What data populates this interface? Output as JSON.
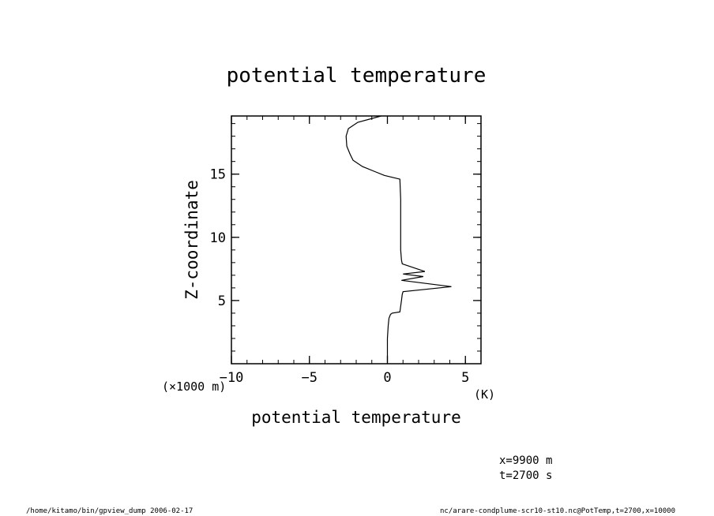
{
  "chart_data": {
    "type": "line",
    "title": "potential temperature",
    "xlabel": "potential temperature",
    "xunit": "(K)",
    "ylabel": "Z-coordinate",
    "yunit": "(×1000 m)",
    "xlim": [
      -10,
      6
    ],
    "ylim": [
      0,
      19.6
    ],
    "xticks": [
      -10,
      -5,
      0,
      5
    ],
    "yticks": [
      5,
      10,
      15
    ],
    "grid": false,
    "series": [
      {
        "x": [
          0.0,
          0.0,
          0.05,
          0.1,
          0.2,
          0.3,
          0.8,
          0.9,
          0.95,
          1.0,
          4.1,
          0.9,
          2.3,
          1.0,
          2.4,
          0.95,
          0.9,
          0.85,
          0.85,
          0.8,
          -0.2,
          -0.8,
          -1.6,
          -2.2,
          -2.4,
          -2.6,
          -2.65,
          -2.5,
          -1.9,
          -0.4
        ],
        "y": [
          0.1,
          2.0,
          3.0,
          3.6,
          3.9,
          4.0,
          4.1,
          5.0,
          5.5,
          5.7,
          6.1,
          6.6,
          6.9,
          7.1,
          7.3,
          7.9,
          8.2,
          9.0,
          13.0,
          14.6,
          14.9,
          15.2,
          15.6,
          16.1,
          16.6,
          17.2,
          18.0,
          18.6,
          19.1,
          19.6
        ]
      }
    ]
  },
  "footer": {
    "meta_x": "x=9900  m",
    "meta_t": "t=2700  s",
    "path_left": "/home/kitamo/bin/gpview_dump  2006-02-17",
    "path_right": "nc/arare-condplume-scr10-st10.nc@PotTemp,t=2700,x=10000"
  }
}
